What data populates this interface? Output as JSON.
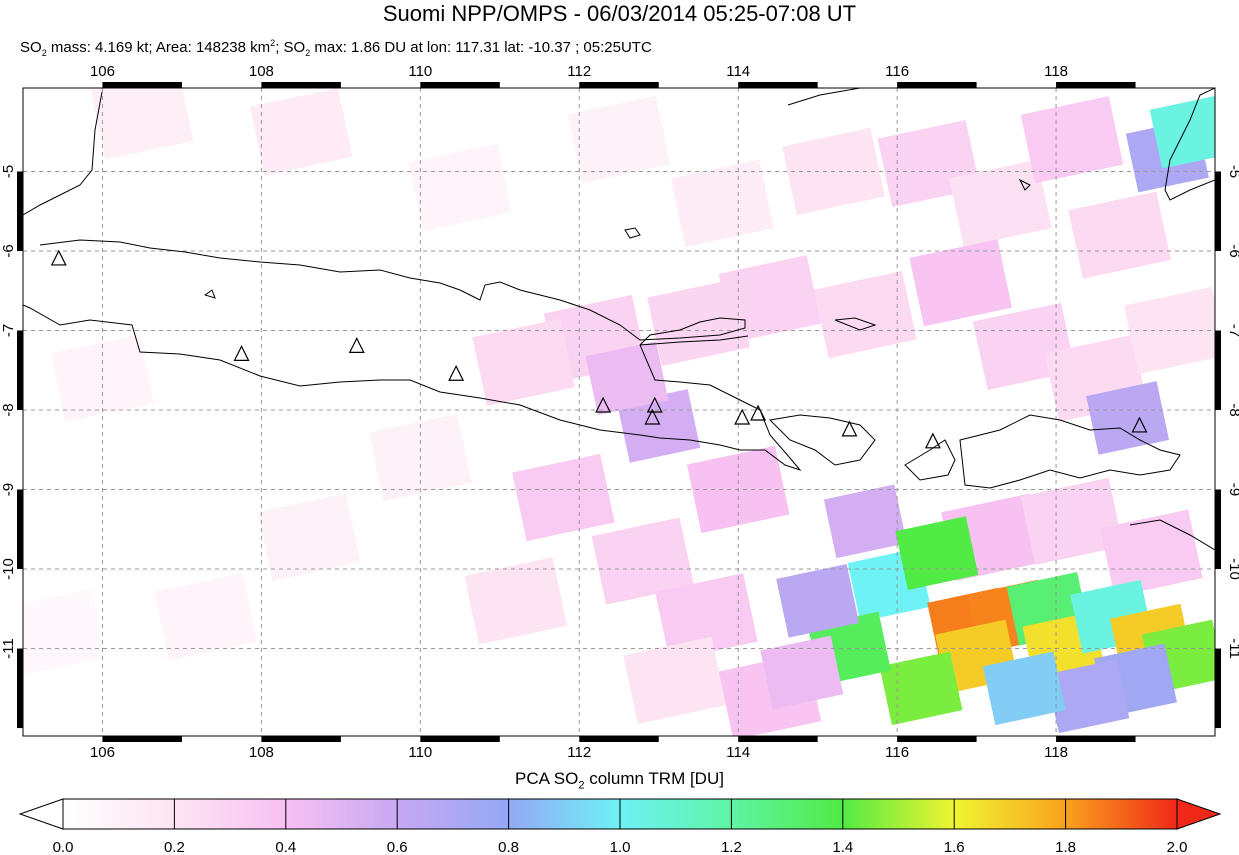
{
  "title": "Suomi NPP/OMPS - 06/03/2014 05:25-07:08 UT",
  "subtitle": {
    "mass_label": "SO",
    "mass_sub": "2",
    "mass_text": " mass: 4.169 kt; Area: 148238 km",
    "area_sup": "2",
    "max_prefix": "; SO",
    "max_sub": "2",
    "max_text": " max: 1.86 DU at lon: 117.31 lat: -10.37 ; 05:25UTC"
  },
  "map": {
    "lon_range": [
      105,
      120
    ],
    "lat_range": [
      -12.1,
      -3.95
    ],
    "lon_ticks": [
      106,
      108,
      110,
      112,
      114,
      116,
      118
    ],
    "lat_ticks": [
      -5,
      -6,
      -7,
      -8,
      -9,
      -10,
      -11
    ],
    "grid": "dashed",
    "volcano_markers": [
      [
        105.45,
        -6.1
      ],
      [
        107.75,
        -7.3
      ],
      [
        109.2,
        -7.2
      ],
      [
        110.45,
        -7.55
      ],
      [
        112.3,
        -7.95
      ],
      [
        112.95,
        -7.95
      ],
      [
        112.92,
        -8.1
      ],
      [
        114.05,
        -8.1
      ],
      [
        114.25,
        -8.05
      ],
      [
        115.4,
        -8.25
      ],
      [
        116.45,
        -8.4
      ],
      [
        119.05,
        -8.2
      ]
    ],
    "so2_cells": [
      {
        "lon": 115.6,
        "lat": -9.4,
        "v": 0.55
      },
      {
        "lon": 115.9,
        "lat": -10.2,
        "v": 1.0
      },
      {
        "lon": 116.5,
        "lat": -9.8,
        "v": 1.4
      },
      {
        "lon": 116.9,
        "lat": -10.7,
        "v": 1.86
      },
      {
        "lon": 117.4,
        "lat": -10.6,
        "v": 1.85
      },
      {
        "lon": 117.0,
        "lat": -11.1,
        "v": 1.7
      },
      {
        "lon": 116.3,
        "lat": -11.5,
        "v": 1.45
      },
      {
        "lon": 117.9,
        "lat": -10.5,
        "v": 1.3
      },
      {
        "lon": 118.1,
        "lat": -11.0,
        "v": 1.65
      },
      {
        "lon": 118.7,
        "lat": -10.6,
        "v": 1.05
      },
      {
        "lon": 119.2,
        "lat": -10.9,
        "v": 1.7
      },
      {
        "lon": 119.6,
        "lat": -11.1,
        "v": 1.45
      },
      {
        "lon": 115.4,
        "lat": -11.0,
        "v": 1.35
      },
      {
        "lon": 115.0,
        "lat": -10.4,
        "v": 0.65
      },
      {
        "lon": 119.0,
        "lat": -11.4,
        "v": 0.75
      },
      {
        "lon": 118.4,
        "lat": -11.6,
        "v": 0.7
      },
      {
        "lon": 117.6,
        "lat": -11.5,
        "v": 0.9
      },
      {
        "lon": 119.4,
        "lat": -4.8,
        "v": 0.7
      },
      {
        "lon": 119.7,
        "lat": -4.5,
        "v": 1.05
      },
      {
        "lon": 118.9,
        "lat": -8.1,
        "v": 0.65
      },
      {
        "lon": 113.0,
        "lat": -8.2,
        "v": 0.55
      },
      {
        "lon": 112.6,
        "lat": -7.6,
        "v": 0.45
      },
      {
        "lon": 114.8,
        "lat": -11.3,
        "v": 0.45
      }
    ]
  },
  "colorbar": {
    "title_prefix": "PCA SO",
    "title_sub": "2",
    "title_suffix": " column TRM [DU]",
    "ticks": [
      "0.0",
      "0.2",
      "0.4",
      "0.6",
      "0.8",
      "1.0",
      "1.2",
      "1.4",
      "1.6",
      "1.8",
      "2.0"
    ],
    "range": [
      0,
      2
    ]
  }
}
